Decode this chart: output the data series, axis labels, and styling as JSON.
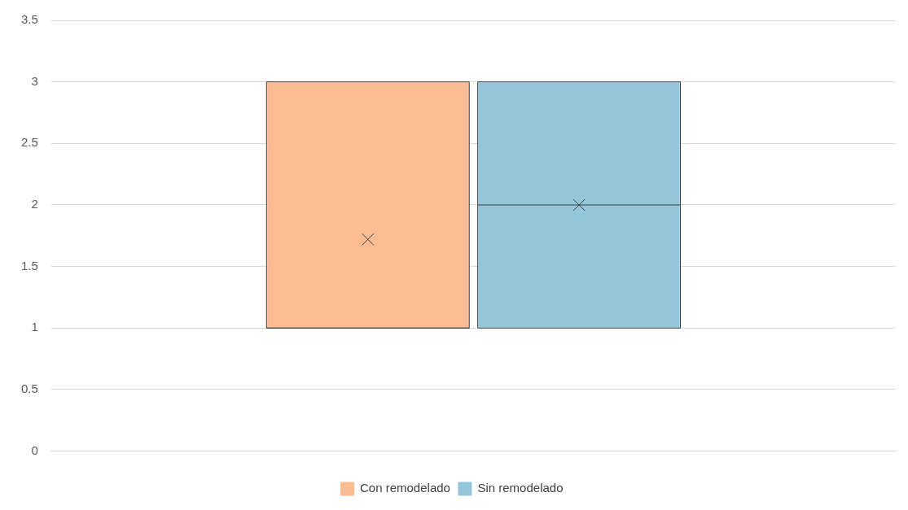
{
  "chart_data": {
    "type": "box",
    "categories": [
      null
    ],
    "series": [
      {
        "name": "Con remodelado",
        "color": "#fbbb93",
        "boxes": [
          {
            "low": 1,
            "q1": 1,
            "median": 1,
            "q3": 3,
            "high": 3,
            "mean": 1.72
          }
        ]
      },
      {
        "name": "Sin remodelado",
        "color": "#93c6d9",
        "boxes": [
          {
            "low": 1,
            "q1": 1,
            "median": 2,
            "q3": 3,
            "high": 3,
            "mean": 2
          }
        ]
      }
    ],
    "ylim": [
      0,
      3.5
    ],
    "yticks": [
      0,
      0.5,
      1,
      1.5,
      2,
      2.5,
      3,
      3.5
    ],
    "grid": "y",
    "legend": "bottom"
  }
}
